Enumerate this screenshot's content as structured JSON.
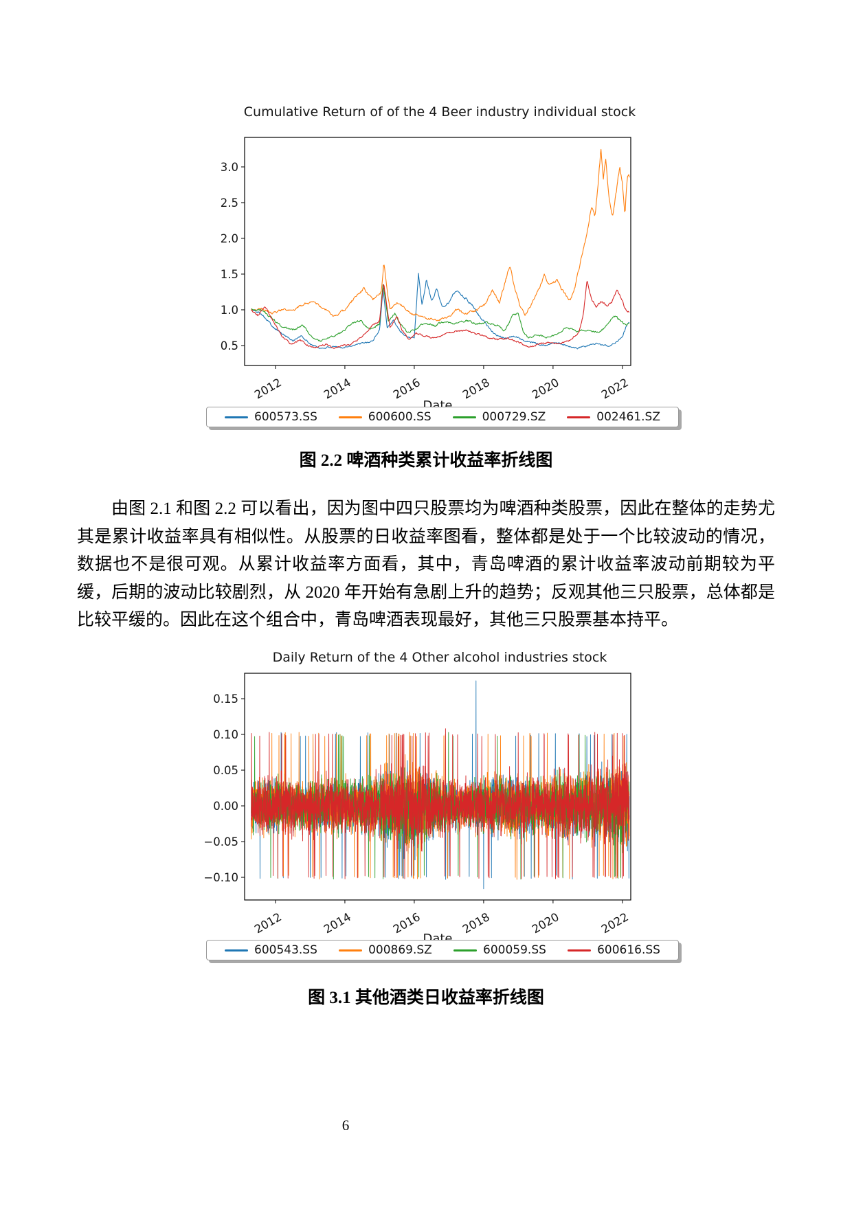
{
  "page": {
    "number": "6"
  },
  "figure1": {
    "caption": "图 2.2 啤酒种类累计收益率折线图"
  },
  "figure2": {
    "caption": "图 3.1 其他酒类日收益率折线图"
  },
  "paragraph": {
    "text": "由图 2.1 和图 2.2 可以看出，因为图中四只股票均为啤酒种类股票，因此在整体的走势尤其是累计收益率具有相似性。从股票的日收益率图看，整体都是处于一个比较波动的情况，数据也不是很可观。从累计收益率方面看，其中，青岛啤酒的累计收益率波动前期较为平缓，后期的波动比较剧烈，从 2020 年开始有急剧上升的趋势；反观其他三只股票，总体都是比较平缓的。因此在这个组合中，青岛啤酒表现最好，其他三只股票基本持平。"
  },
  "chart_data": [
    {
      "type": "line",
      "title": "Cumulative Return of of the 4 Beer industry individual stock",
      "xlabel": "Date",
      "ylabel": "",
      "grid": false,
      "legend_position": "below",
      "xlim": [
        2011.11,
        2022.24
      ],
      "ylim": [
        0.221,
        3.413
      ],
      "data_range": [
        2011.3,
        2022.2
      ],
      "noise": 0.03,
      "xticks": {
        "values": [
          2012,
          2014,
          2016,
          2018,
          2020,
          2022
        ],
        "labels": [
          "2012",
          "2014",
          "2016",
          "2018",
          "2020",
          "2022"
        ]
      },
      "yticks": {
        "values": [
          0.5,
          1.0,
          1.5,
          2.0,
          2.5,
          3.0
        ],
        "labels": [
          "0.5",
          "1.0",
          "1.5",
          "2.0",
          "2.5",
          "3.0"
        ]
      },
      "series": [
        {
          "name": "600573.SS",
          "color": "#1f77b4",
          "seed": 101,
          "keypoints": [
            [
              2011.3,
              1.0
            ],
            [
              2011.6,
              0.95
            ],
            [
              2011.9,
              0.78
            ],
            [
              2012.2,
              0.66
            ],
            [
              2012.5,
              0.57
            ],
            [
              2012.75,
              0.63
            ],
            [
              2013.0,
              0.52
            ],
            [
              2013.3,
              0.46
            ],
            [
              2013.6,
              0.48
            ],
            [
              2013.9,
              0.47
            ],
            [
              2014.2,
              0.5
            ],
            [
              2014.5,
              0.53
            ],
            [
              2014.8,
              0.56
            ],
            [
              2015.0,
              0.72
            ],
            [
              2015.1,
              1.3
            ],
            [
              2015.22,
              0.75
            ],
            [
              2015.4,
              0.85
            ],
            [
              2015.6,
              0.7
            ],
            [
              2015.8,
              0.62
            ],
            [
              2016.0,
              0.6
            ],
            [
              2016.12,
              1.5
            ],
            [
              2016.22,
              1.05
            ],
            [
              2016.35,
              1.42
            ],
            [
              2016.5,
              1.12
            ],
            [
              2016.65,
              1.3
            ],
            [
              2016.8,
              1.05
            ],
            [
              2017.0,
              1.1
            ],
            [
              2017.2,
              1.28
            ],
            [
              2017.35,
              1.22
            ],
            [
              2017.5,
              1.15
            ],
            [
              2017.7,
              1.05
            ],
            [
              2017.9,
              0.9
            ],
            [
              2018.1,
              0.78
            ],
            [
              2018.35,
              0.65
            ],
            [
              2018.6,
              0.6
            ],
            [
              2018.9,
              0.63
            ],
            [
              2019.2,
              0.57
            ],
            [
              2019.5,
              0.53
            ],
            [
              2019.8,
              0.5
            ],
            [
              2020.1,
              0.55
            ],
            [
              2020.4,
              0.5
            ],
            [
              2020.7,
              0.46
            ],
            [
              2021.0,
              0.5
            ],
            [
              2021.3,
              0.53
            ],
            [
              2021.6,
              0.49
            ],
            [
              2021.85,
              0.55
            ],
            [
              2022.0,
              0.62
            ],
            [
              2022.1,
              0.75
            ],
            [
              2022.2,
              0.83
            ]
          ]
        },
        {
          "name": "600600.SS",
          "color": "#ff7f0e",
          "seed": 202,
          "keypoints": [
            [
              2011.3,
              1.0
            ],
            [
              2011.6,
              1.02
            ],
            [
              2011.9,
              0.95
            ],
            [
              2012.2,
              1.0
            ],
            [
              2012.5,
              0.98
            ],
            [
              2012.8,
              1.08
            ],
            [
              2013.1,
              1.12
            ],
            [
              2013.4,
              1.02
            ],
            [
              2013.7,
              0.9
            ],
            [
              2014.0,
              1.0
            ],
            [
              2014.3,
              1.18
            ],
            [
              2014.55,
              1.3
            ],
            [
              2014.8,
              1.13
            ],
            [
              2015.05,
              1.25
            ],
            [
              2015.12,
              1.65
            ],
            [
              2015.3,
              1.0
            ],
            [
              2015.5,
              1.1
            ],
            [
              2015.7,
              1.05
            ],
            [
              2015.9,
              0.95
            ],
            [
              2016.1,
              0.92
            ],
            [
              2016.4,
              0.88
            ],
            [
              2016.7,
              0.86
            ],
            [
              2017.0,
              0.9
            ],
            [
              2017.2,
              1.0
            ],
            [
              2017.5,
              0.95
            ],
            [
              2017.8,
              1.0
            ],
            [
              2018.05,
              1.08
            ],
            [
              2018.25,
              1.28
            ],
            [
              2018.45,
              1.1
            ],
            [
              2018.6,
              1.35
            ],
            [
              2018.75,
              1.62
            ],
            [
              2018.9,
              1.3
            ],
            [
              2019.05,
              1.05
            ],
            [
              2019.2,
              0.92
            ],
            [
              2019.45,
              1.15
            ],
            [
              2019.6,
              1.3
            ],
            [
              2019.75,
              1.48
            ],
            [
              2019.9,
              1.35
            ],
            [
              2020.1,
              1.42
            ],
            [
              2020.3,
              1.25
            ],
            [
              2020.5,
              1.12
            ],
            [
              2020.65,
              1.35
            ],
            [
              2020.8,
              1.7
            ],
            [
              2020.95,
              2.0
            ],
            [
              2021.1,
              2.45
            ],
            [
              2021.2,
              2.3
            ],
            [
              2021.3,
              2.75
            ],
            [
              2021.38,
              3.28
            ],
            [
              2021.45,
              2.85
            ],
            [
              2021.52,
              3.1
            ],
            [
              2021.62,
              2.55
            ],
            [
              2021.72,
              2.3
            ],
            [
              2021.82,
              2.65
            ],
            [
              2021.92,
              3.0
            ],
            [
              2022.0,
              2.8
            ],
            [
              2022.07,
              2.35
            ],
            [
              2022.15,
              2.9
            ],
            [
              2022.2,
              2.85
            ]
          ]
        },
        {
          "name": "000729.SZ",
          "color": "#2ca02c",
          "seed": 303,
          "keypoints": [
            [
              2011.3,
              1.0
            ],
            [
              2011.6,
              1.0
            ],
            [
              2011.9,
              0.88
            ],
            [
              2012.2,
              0.75
            ],
            [
              2012.5,
              0.72
            ],
            [
              2012.8,
              0.78
            ],
            [
              2013.05,
              0.62
            ],
            [
              2013.3,
              0.56
            ],
            [
              2013.6,
              0.62
            ],
            [
              2013.9,
              0.68
            ],
            [
              2014.2,
              0.8
            ],
            [
              2014.45,
              0.85
            ],
            [
              2014.7,
              0.72
            ],
            [
              2015.0,
              0.8
            ],
            [
              2015.1,
              1.38
            ],
            [
              2015.25,
              0.85
            ],
            [
              2015.45,
              0.95
            ],
            [
              2015.6,
              0.8
            ],
            [
              2015.8,
              0.68
            ],
            [
              2016.0,
              0.72
            ],
            [
              2016.3,
              0.82
            ],
            [
              2016.6,
              0.78
            ],
            [
              2016.9,
              0.85
            ],
            [
              2017.2,
              0.8
            ],
            [
              2017.5,
              0.85
            ],
            [
              2017.8,
              0.8
            ],
            [
              2018.1,
              0.82
            ],
            [
              2018.4,
              0.78
            ],
            [
              2018.6,
              0.7
            ],
            [
              2018.85,
              0.92
            ],
            [
              2019.0,
              0.95
            ],
            [
              2019.15,
              0.68
            ],
            [
              2019.3,
              0.6
            ],
            [
              2019.5,
              0.65
            ],
            [
              2019.8,
              0.62
            ],
            [
              2020.1,
              0.65
            ],
            [
              2020.4,
              0.75
            ],
            [
              2020.7,
              0.7
            ],
            [
              2021.0,
              0.72
            ],
            [
              2021.3,
              0.68
            ],
            [
              2021.55,
              0.78
            ],
            [
              2021.75,
              0.92
            ],
            [
              2021.95,
              0.85
            ],
            [
              2022.1,
              0.78
            ],
            [
              2022.2,
              0.82
            ]
          ]
        },
        {
          "name": "002461.SZ",
          "color": "#d62728",
          "seed": 404,
          "keypoints": [
            [
              2011.3,
              1.0
            ],
            [
              2011.5,
              0.92
            ],
            [
              2011.7,
              1.05
            ],
            [
              2011.95,
              0.82
            ],
            [
              2012.2,
              0.62
            ],
            [
              2012.45,
              0.52
            ],
            [
              2012.7,
              0.58
            ],
            [
              2012.95,
              0.5
            ],
            [
              2013.2,
              0.47
            ],
            [
              2013.45,
              0.52
            ],
            [
              2013.7,
              0.46
            ],
            [
              2013.95,
              0.5
            ],
            [
              2014.2,
              0.52
            ],
            [
              2014.5,
              0.62
            ],
            [
              2014.8,
              0.78
            ],
            [
              2015.0,
              0.85
            ],
            [
              2015.12,
              1.38
            ],
            [
              2015.3,
              0.75
            ],
            [
              2015.5,
              0.9
            ],
            [
              2015.65,
              0.72
            ],
            [
              2015.85,
              0.58
            ],
            [
              2016.05,
              0.68
            ],
            [
              2016.3,
              0.63
            ],
            [
              2016.6,
              0.6
            ],
            [
              2016.9,
              0.66
            ],
            [
              2017.2,
              0.7
            ],
            [
              2017.5,
              0.72
            ],
            [
              2017.8,
              0.66
            ],
            [
              2018.1,
              0.62
            ],
            [
              2018.4,
              0.58
            ],
            [
              2018.7,
              0.6
            ],
            [
              2019.0,
              0.55
            ],
            [
              2019.3,
              0.48
            ],
            [
              2019.6,
              0.52
            ],
            [
              2019.9,
              0.55
            ],
            [
              2020.2,
              0.52
            ],
            [
              2020.5,
              0.58
            ],
            [
              2020.75,
              0.68
            ],
            [
              2020.88,
              0.95
            ],
            [
              2020.98,
              1.42
            ],
            [
              2021.1,
              1.15
            ],
            [
              2021.25,
              1.05
            ],
            [
              2021.4,
              1.12
            ],
            [
              2021.55,
              1.05
            ],
            [
              2021.7,
              1.12
            ],
            [
              2021.85,
              1.3
            ],
            [
              2021.95,
              1.18
            ],
            [
              2022.05,
              1.05
            ],
            [
              2022.15,
              0.95
            ],
            [
              2022.2,
              0.97
            ]
          ]
        }
      ]
    },
    {
      "type": "line",
      "title": "Daily Return of the 4 Other alcohol industries stock",
      "xlabel": "Date",
      "ylabel": "",
      "grid": false,
      "legend_position": "below",
      "xlim": [
        2011.11,
        2022.24
      ],
      "ylim": [
        -0.1317,
        0.1856
      ],
      "data_range": [
        2011.3,
        2022.2
      ],
      "daily_cap": 0.1,
      "xticks": {
        "values": [
          2012,
          2014,
          2016,
          2018,
          2020,
          2022
        ],
        "labels": [
          "2012",
          "2014",
          "2016",
          "2018",
          "2020",
          "2022"
        ]
      },
      "yticks": {
        "values": [
          -0.1,
          -0.05,
          0.0,
          0.05,
          0.1,
          0.15
        ],
        "labels": [
          "−0.10",
          "−0.05",
          "0.00",
          "0.05",
          "0.10",
          "0.15"
        ]
      },
      "sigma_keypoints": [
        [
          2011.3,
          0.022
        ],
        [
          2012.0,
          0.024
        ],
        [
          2012.8,
          0.022
        ],
        [
          2013.5,
          0.024
        ],
        [
          2014.2,
          0.022
        ],
        [
          2014.8,
          0.026
        ],
        [
          2015.3,
          0.032
        ],
        [
          2015.8,
          0.04
        ],
        [
          2016.2,
          0.034
        ],
        [
          2016.8,
          0.024
        ],
        [
          2017.4,
          0.018
        ],
        [
          2018.0,
          0.022
        ],
        [
          2018.6,
          0.026
        ],
        [
          2019.2,
          0.024
        ],
        [
          2019.8,
          0.024
        ],
        [
          2020.2,
          0.028
        ],
        [
          2020.8,
          0.026
        ],
        [
          2021.4,
          0.03
        ],
        [
          2021.9,
          0.034
        ],
        [
          2022.2,
          0.036
        ]
      ],
      "series": [
        {
          "name": "600543.SS",
          "color": "#1f77b4",
          "seed": 7,
          "vol": 1.0,
          "spike_prob": 0.01,
          "extra_spikes": [
            [
              2017.78,
              0.175
            ],
            [
              2018.0,
              -0.116
            ]
          ]
        },
        {
          "name": "000869.SZ",
          "color": "#ff7f0e",
          "seed": 13,
          "vol": 1.05,
          "spike_prob": 0.011,
          "extra_spikes": []
        },
        {
          "name": "600059.SS",
          "color": "#2ca02c",
          "seed": 21,
          "vol": 0.95,
          "spike_prob": 0.008,
          "extra_spikes": []
        },
        {
          "name": "600616.SS",
          "color": "#d62728",
          "seed": 29,
          "vol": 1.1,
          "spike_prob": 0.014,
          "extra_spikes": [
            [
              2016.9,
              0.108
            ]
          ]
        }
      ]
    }
  ]
}
